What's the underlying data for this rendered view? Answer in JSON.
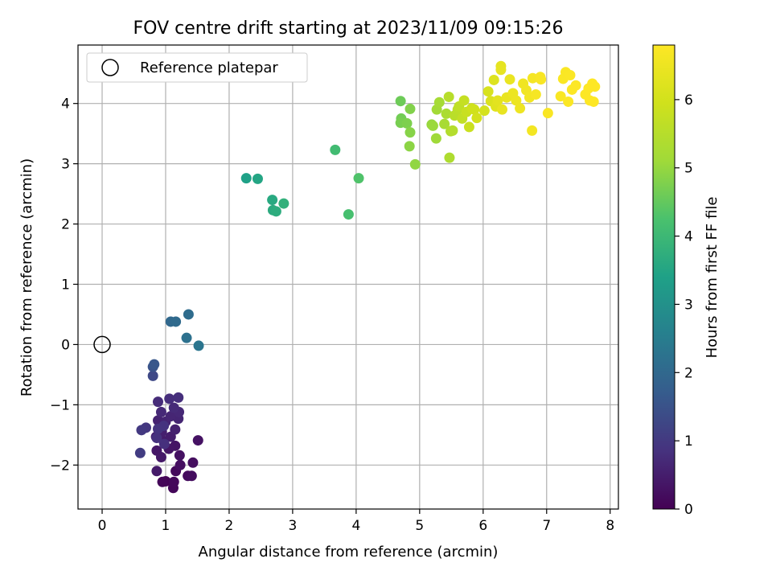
{
  "chart_data": {
    "type": "scatter",
    "title": "FOV centre drift starting at 2023/11/09 09:15:26",
    "xlabel": "Angular distance from reference (arcmin)",
    "ylabel": "Rotation from reference (arcmin)",
    "xlim": [
      -0.38,
      8.13
    ],
    "ylim": [
      -2.73,
      4.97
    ],
    "xticks": [
      0,
      1,
      2,
      3,
      4,
      5,
      6,
      7,
      8
    ],
    "yticks": [
      -2,
      -1,
      0,
      1,
      2,
      3,
      4
    ],
    "grid": true,
    "legend": {
      "placement": "top-left",
      "entries": [
        {
          "label": "Reference platepar",
          "marker": "open-circle"
        }
      ]
    },
    "reference_point": {
      "x": 0,
      "y": 0
    },
    "colorbar": {
      "label": "Hours from first FF file",
      "range": [
        0,
        6.8
      ],
      "ticks": [
        0,
        1,
        2,
        3,
        4,
        5,
        6
      ],
      "colormap": "viridis"
    },
    "series": [
      {
        "columns": [
          "x",
          "y",
          "hours"
        ],
        "points": [
          [
            1.0,
            -2.27,
            0.05
          ],
          [
            0.95,
            -2.28,
            0.08
          ],
          [
            1.12,
            -2.38,
            0.1
          ],
          [
            1.13,
            -2.28,
            0.12
          ],
          [
            1.16,
            -2.1,
            0.15
          ],
          [
            1.35,
            -2.18,
            0.18
          ],
          [
            1.41,
            -2.18,
            0.2
          ],
          [
            1.43,
            -1.96,
            0.22
          ],
          [
            1.23,
            -2.0,
            0.25
          ],
          [
            1.22,
            -1.84,
            0.28
          ],
          [
            1.51,
            -1.59,
            0.3
          ],
          [
            1.15,
            -1.68,
            0.33
          ],
          [
            1.05,
            -1.73,
            0.35
          ],
          [
            0.86,
            -1.76,
            0.38
          ],
          [
            0.93,
            -1.87,
            0.4
          ],
          [
            0.86,
            -2.1,
            0.43
          ],
          [
            0.97,
            -1.6,
            0.45
          ],
          [
            1.08,
            -1.53,
            0.48
          ],
          [
            0.85,
            -1.53,
            0.5
          ],
          [
            0.94,
            -1.45,
            0.52
          ],
          [
            1.15,
            -1.41,
            0.55
          ],
          [
            0.88,
            -1.26,
            0.58
          ],
          [
            1.0,
            -1.28,
            0.6
          ],
          [
            1.2,
            -1.23,
            0.62
          ],
          [
            1.08,
            -1.19,
            0.65
          ],
          [
            1.21,
            -1.12,
            0.68
          ],
          [
            0.93,
            -1.12,
            0.7
          ],
          [
            1.13,
            -1.05,
            0.72
          ],
          [
            0.88,
            -0.95,
            0.75
          ],
          [
            1.06,
            -0.9,
            0.78
          ],
          [
            1.2,
            -0.88,
            0.8
          ],
          [
            0.98,
            -1.65,
            0.82
          ],
          [
            0.86,
            -1.55,
            0.85
          ],
          [
            0.97,
            -1.35,
            0.88
          ],
          [
            0.88,
            -1.4,
            0.9
          ],
          [
            0.69,
            -1.38,
            0.95
          ],
          [
            0.62,
            -1.42,
            1.0
          ],
          [
            0.6,
            -1.8,
            1.05
          ],
          [
            0.8,
            -0.52,
            1.3
          ],
          [
            0.8,
            -0.37,
            1.5
          ],
          [
            0.82,
            -0.33,
            1.6
          ],
          [
            1.08,
            0.38,
            2.0
          ],
          [
            1.16,
            0.38,
            2.05
          ],
          [
            1.36,
            0.5,
            2.1
          ],
          [
            1.33,
            0.11,
            2.2
          ],
          [
            1.52,
            -0.02,
            2.3
          ],
          [
            2.27,
            2.76,
            3.4
          ],
          [
            2.45,
            2.75,
            3.5
          ],
          [
            2.68,
            2.4,
            3.6
          ],
          [
            2.69,
            2.23,
            3.65
          ],
          [
            2.74,
            2.21,
            3.7
          ],
          [
            2.86,
            2.34,
            3.8
          ],
          [
            3.67,
            3.23,
            4.1
          ],
          [
            3.88,
            2.16,
            4.2
          ],
          [
            4.04,
            2.76,
            4.3
          ],
          [
            4.7,
            4.04,
            4.6
          ],
          [
            4.71,
            3.75,
            4.65
          ],
          [
            4.7,
            3.68,
            4.7
          ],
          [
            4.8,
            3.67,
            4.75
          ],
          [
            4.85,
            3.91,
            4.8
          ],
          [
            4.85,
            3.52,
            4.85
          ],
          [
            4.84,
            3.29,
            4.9
          ],
          [
            4.93,
            2.99,
            4.95
          ],
          [
            5.19,
            3.65,
            5.0
          ],
          [
            5.21,
            3.63,
            5.05
          ],
          [
            5.26,
            3.42,
            5.1
          ],
          [
            5.27,
            3.9,
            5.15
          ],
          [
            5.31,
            4.02,
            5.2
          ],
          [
            5.39,
            3.66,
            5.25
          ],
          [
            5.42,
            3.83,
            5.3
          ],
          [
            5.47,
            3.1,
            5.35
          ],
          [
            5.49,
            3.54,
            5.4
          ],
          [
            5.52,
            3.55,
            5.45
          ],
          [
            5.46,
            4.11,
            5.5
          ],
          [
            5.55,
            3.8,
            5.55
          ],
          [
            5.6,
            3.9,
            5.6
          ],
          [
            5.62,
            3.95,
            5.65
          ],
          [
            5.67,
            3.75,
            5.7
          ],
          [
            5.7,
            4.05,
            5.75
          ],
          [
            5.74,
            3.86,
            5.8
          ],
          [
            5.78,
            3.61,
            5.85
          ],
          [
            5.82,
            3.92,
            5.9
          ],
          [
            5.86,
            3.9,
            5.95
          ],
          [
            5.9,
            3.76,
            6.0
          ],
          [
            6.02,
            3.88,
            6.05
          ],
          [
            6.08,
            4.2,
            6.1
          ],
          [
            6.12,
            4.04,
            6.15
          ],
          [
            6.17,
            4.39,
            6.2
          ],
          [
            6.2,
            3.95,
            6.25
          ],
          [
            6.23,
            4.05,
            6.3
          ],
          [
            6.28,
            4.62,
            6.35
          ],
          [
            6.28,
            4.56,
            6.38
          ],
          [
            6.3,
            3.9,
            6.4
          ],
          [
            6.37,
            4.1,
            6.42
          ],
          [
            6.42,
            4.4,
            6.45
          ],
          [
            6.47,
            4.17,
            6.48
          ],
          [
            6.52,
            4.05,
            6.5
          ],
          [
            6.58,
            3.92,
            6.52
          ],
          [
            6.63,
            4.33,
            6.55
          ],
          [
            6.68,
            4.22,
            6.58
          ],
          [
            6.73,
            4.1,
            6.6
          ],
          [
            6.77,
            3.55,
            6.62
          ],
          [
            6.78,
            4.42,
            6.64
          ],
          [
            6.83,
            4.15,
            6.66
          ],
          [
            6.9,
            4.44,
            6.68
          ],
          [
            6.91,
            4.4,
            6.7
          ],
          [
            7.02,
            3.84,
            6.72
          ],
          [
            7.22,
            4.12,
            6.73
          ],
          [
            7.26,
            4.41,
            6.74
          ],
          [
            7.3,
            4.52,
            6.75
          ],
          [
            7.34,
            4.03,
            6.76
          ],
          [
            7.37,
            4.47,
            6.77
          ],
          [
            7.4,
            4.23,
            6.78
          ],
          [
            7.46,
            4.3,
            6.79
          ],
          [
            7.61,
            4.15,
            6.79
          ],
          [
            7.66,
            4.25,
            6.8
          ],
          [
            7.68,
            4.05,
            6.8
          ],
          [
            7.72,
            4.33,
            6.8
          ],
          [
            7.74,
            4.03,
            6.8
          ],
          [
            7.76,
            4.28,
            6.8
          ]
        ]
      }
    ]
  }
}
